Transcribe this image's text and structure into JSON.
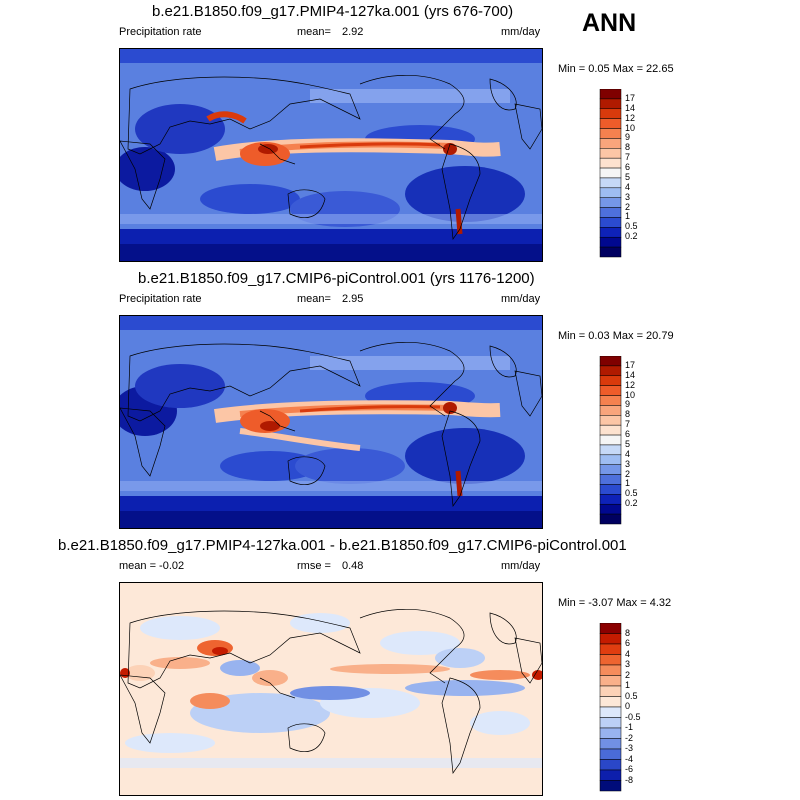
{
  "season": "ANN",
  "panels": [
    {
      "title": "b.e21.B1850.f09_g17.PMIP4-127ka.001 (yrs 676-700)",
      "left_label": "Precipitation rate",
      "stat1_label": "mean=",
      "stat1_value": "2.92",
      "units": "mm/day",
      "minmax": "Min =   0.05 Max =  22.65",
      "colorbar": {
        "colors": [
          "#7f0000",
          "#b01a00",
          "#d93a0c",
          "#ee5c2a",
          "#f5814f",
          "#f9a57c",
          "#fcc6a6",
          "#fde2cf",
          "#f5f5f5",
          "#c6d9f7",
          "#9ebdf2",
          "#7597e8",
          "#4e70dc",
          "#2b4bd0",
          "#0e22b8",
          "#01088f",
          "#000060"
        ],
        "labels": [
          "17",
          "14",
          "12",
          "10",
          "9",
          "8",
          "7",
          "6",
          "5",
          "4",
          "3",
          "2",
          "1",
          "0.5",
          "0.2"
        ]
      }
    },
    {
      "title": "b.e21.B1850.f09_g17.CMIP6-piControl.001 (yrs 1176-1200)",
      "left_label": "Precipitation rate",
      "stat1_label": "mean=",
      "stat1_value": "2.95",
      "units": "mm/day",
      "minmax": "Min =   0.03 Max =  20.79",
      "colorbar": {
        "colors": [
          "#7f0000",
          "#b01a00",
          "#d93a0c",
          "#ee5c2a",
          "#f5814f",
          "#f9a57c",
          "#fcc6a6",
          "#fde2cf",
          "#f5f5f5",
          "#c6d9f7",
          "#9ebdf2",
          "#7597e8",
          "#4e70dc",
          "#2b4bd0",
          "#0e22b8",
          "#01088f",
          "#000060"
        ],
        "labels": [
          "17",
          "14",
          "12",
          "10",
          "9",
          "8",
          "7",
          "6",
          "5",
          "4",
          "3",
          "2",
          "1",
          "0.5",
          "0.2"
        ]
      }
    },
    {
      "title": "b.e21.B1850.f09_g17.PMIP4-127ka.001 - b.e21.B1850.f09_g17.CMIP6-piControl.001",
      "left_label": "mean =  -0.02",
      "stat1_label": "rmse =",
      "stat1_value": "0.48",
      "units": "mm/day",
      "minmax": "Min =  -3.07 Max =   4.32",
      "colorbar": {
        "colors": [
          "#8b0000",
          "#c41b00",
          "#e03d10",
          "#ee6430",
          "#f58c5c",
          "#f9b08a",
          "#fcd2b7",
          "#fde8d8",
          "#dde8fb",
          "#bcd0f6",
          "#98b3ef",
          "#7190e4",
          "#4a6bd8",
          "#2a47c8",
          "#0d1fac",
          "#000c7a"
        ],
        "labels": [
          "8",
          "6",
          "4",
          "3",
          "2",
          "1",
          "0.5",
          "0",
          "-0.5",
          "-1",
          "-2",
          "-3",
          "-4",
          "-6",
          "-8"
        ]
      }
    }
  ],
  "chart_data": [
    {
      "type": "heatmap",
      "title": "b.e21.B1850.f09_g17.PMIP4-127ka.001 (yrs 676-700)",
      "variable": "Precipitation rate",
      "units": "mm/day",
      "mean": 2.92,
      "min": 0.05,
      "max": 22.65,
      "contour_levels": [
        0.2,
        0.5,
        1,
        2,
        3,
        4,
        5,
        6,
        7,
        8,
        9,
        10,
        12,
        14,
        17
      ]
    },
    {
      "type": "heatmap",
      "title": "b.e21.B1850.f09_g17.CMIP6-piControl.001 (yrs 1176-1200)",
      "variable": "Precipitation rate",
      "units": "mm/day",
      "mean": 2.95,
      "min": 0.03,
      "max": 20.79,
      "contour_levels": [
        0.2,
        0.5,
        1,
        2,
        3,
        4,
        5,
        6,
        7,
        8,
        9,
        10,
        12,
        14,
        17
      ]
    },
    {
      "type": "heatmap",
      "title": "b.e21.B1850.f09_g17.PMIP4-127ka.001 - b.e21.B1850.f09_g17.CMIP6-piControl.001",
      "units": "mm/day",
      "mean": -0.02,
      "rmse": 0.48,
      "min": -3.07,
      "max": 4.32,
      "contour_levels": [
        -8,
        -6,
        -4,
        -3,
        -2,
        -1,
        -0.5,
        0,
        0.5,
        1,
        2,
        3,
        4,
        6,
        8
      ]
    }
  ]
}
